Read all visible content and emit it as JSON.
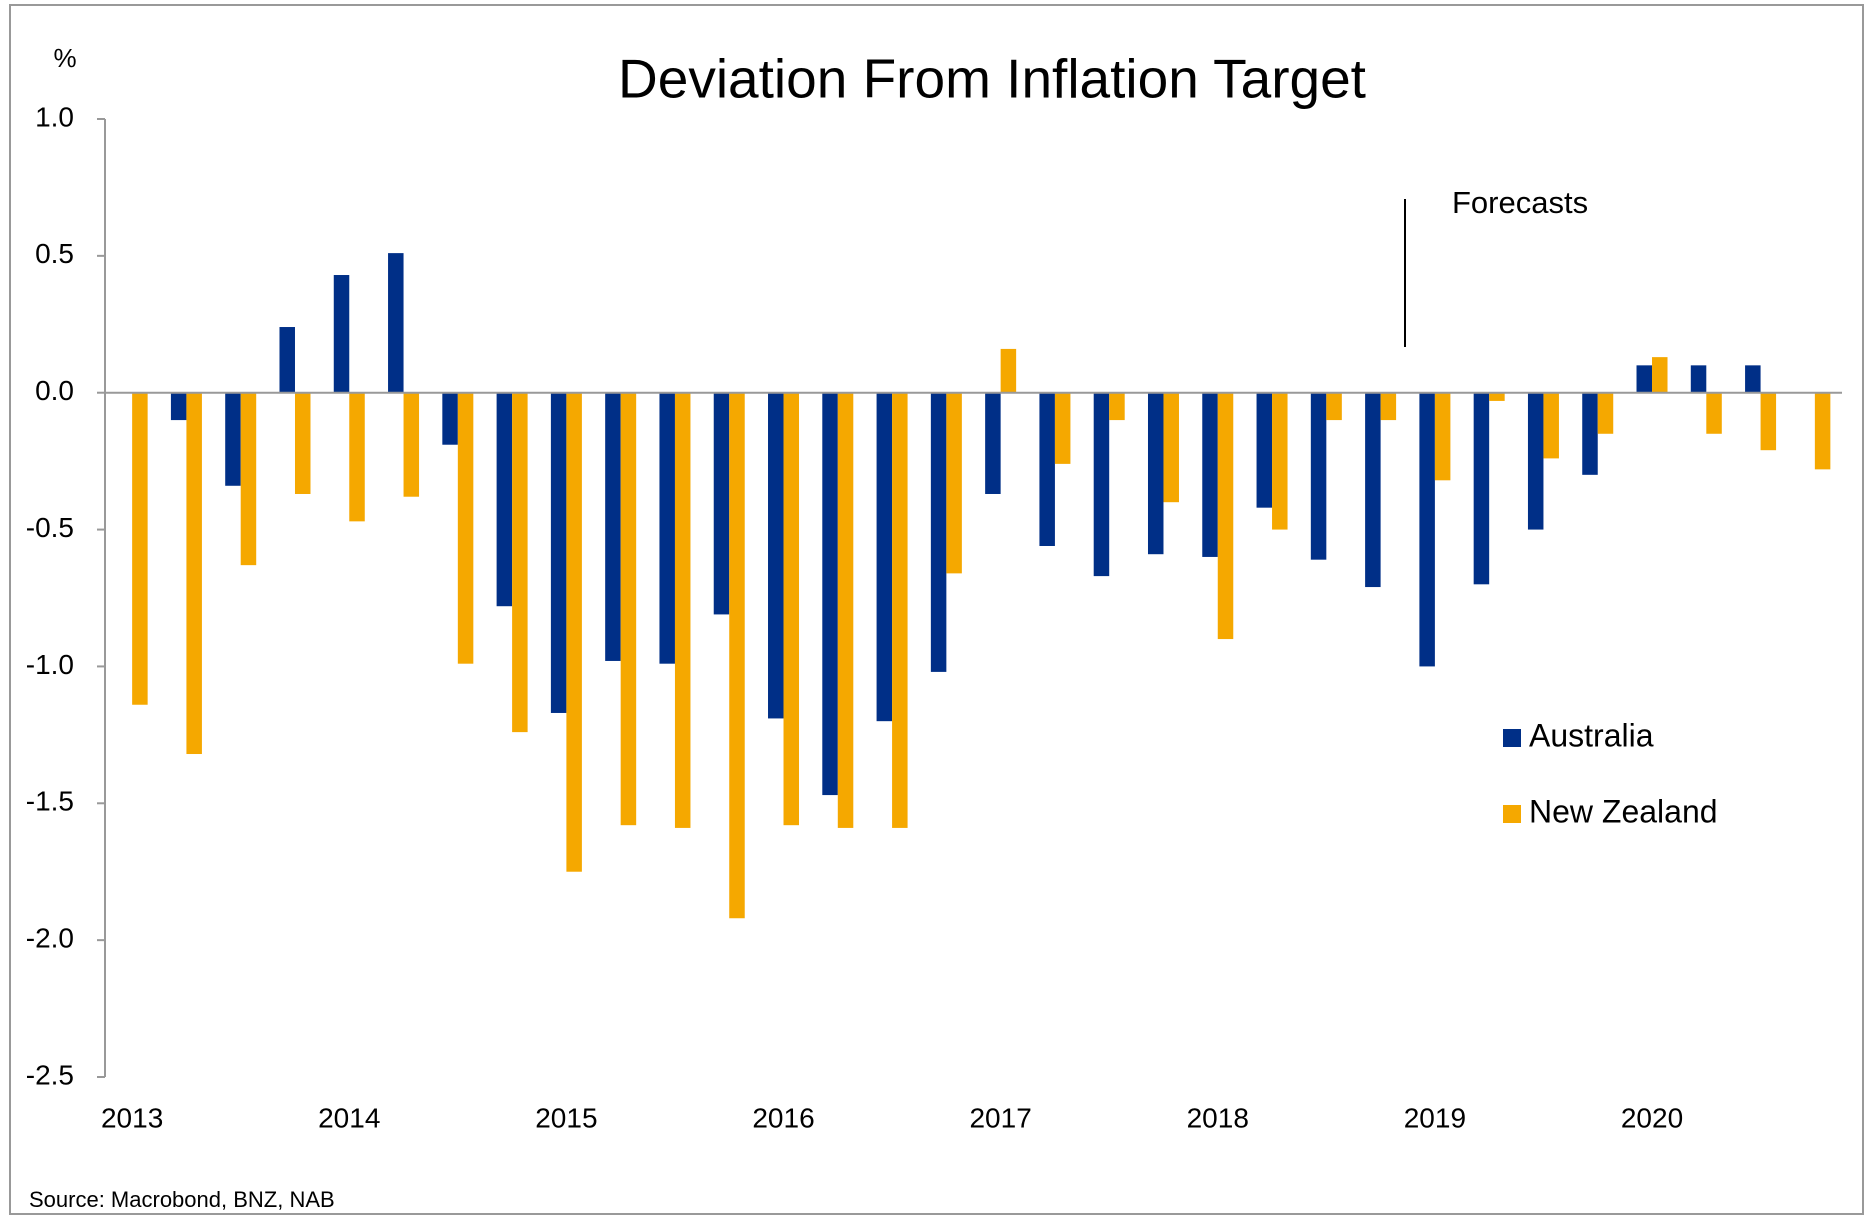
{
  "chart_data": {
    "type": "bar",
    "title": "Deviation From Inflation Target",
    "y_label": "%",
    "source": "Source: Macrobond, BNZ, NAB",
    "annotation": "Forecasts",
    "categories": [
      "2013",
      null,
      null,
      null,
      "2014",
      null,
      null,
      null,
      "2015",
      null,
      null,
      null,
      "2016",
      null,
      null,
      null,
      "2017",
      null,
      null,
      null,
      "2018",
      null,
      null,
      null,
      "2019",
      null,
      null,
      null,
      "2020",
      null,
      null,
      null
    ],
    "series": [
      {
        "name": "Australia",
        "color": "#002f87",
        "values": [
          null,
          -0.1,
          -0.34,
          0.24,
          0.43,
          0.51,
          -0.19,
          -0.78,
          -1.17,
          -0.98,
          -0.99,
          -0.81,
          -1.19,
          -1.47,
          -1.2,
          -1.02,
          -0.37,
          -0.56,
          -0.67,
          -0.59,
          -0.6,
          -0.42,
          -0.61,
          -0.71,
          -1.0,
          -0.7,
          -0.5,
          -0.3,
          0.1,
          0.1,
          0.1,
          null
        ]
      },
      {
        "name": "New Zealand",
        "color": "#f5a800",
        "values": [
          -1.14,
          -1.32,
          -0.63,
          -0.37,
          -0.47,
          -0.38,
          -0.99,
          -1.24,
          -1.75,
          -1.58,
          -1.59,
          -1.92,
          -1.58,
          -1.59,
          -1.59,
          -0.66,
          0.16,
          -0.26,
          -0.1,
          -0.4,
          -0.9,
          -0.5,
          -0.1,
          -0.1,
          -0.32,
          -0.03,
          -0.24,
          -0.15,
          0.13,
          -0.15,
          -0.21,
          -0.28
        ]
      }
    ],
    "ylim": [
      -2.5,
      1.0
    ],
    "yticks": [
      {
        "value": -2.5,
        "label": "-2.5"
      },
      {
        "value": -2.0,
        "label": "-2.0"
      },
      {
        "value": -1.5,
        "label": "-1.5"
      },
      {
        "value": -1.0,
        "label": "-1.0"
      },
      {
        "value": -0.5,
        "label": "-0.5"
      },
      {
        "value": 0.0,
        "label": "0.0"
      },
      0.5,
      {
        "value": 1.0,
        "label": "1.0"
      }
    ],
    "grid": false,
    "legend": "right"
  }
}
